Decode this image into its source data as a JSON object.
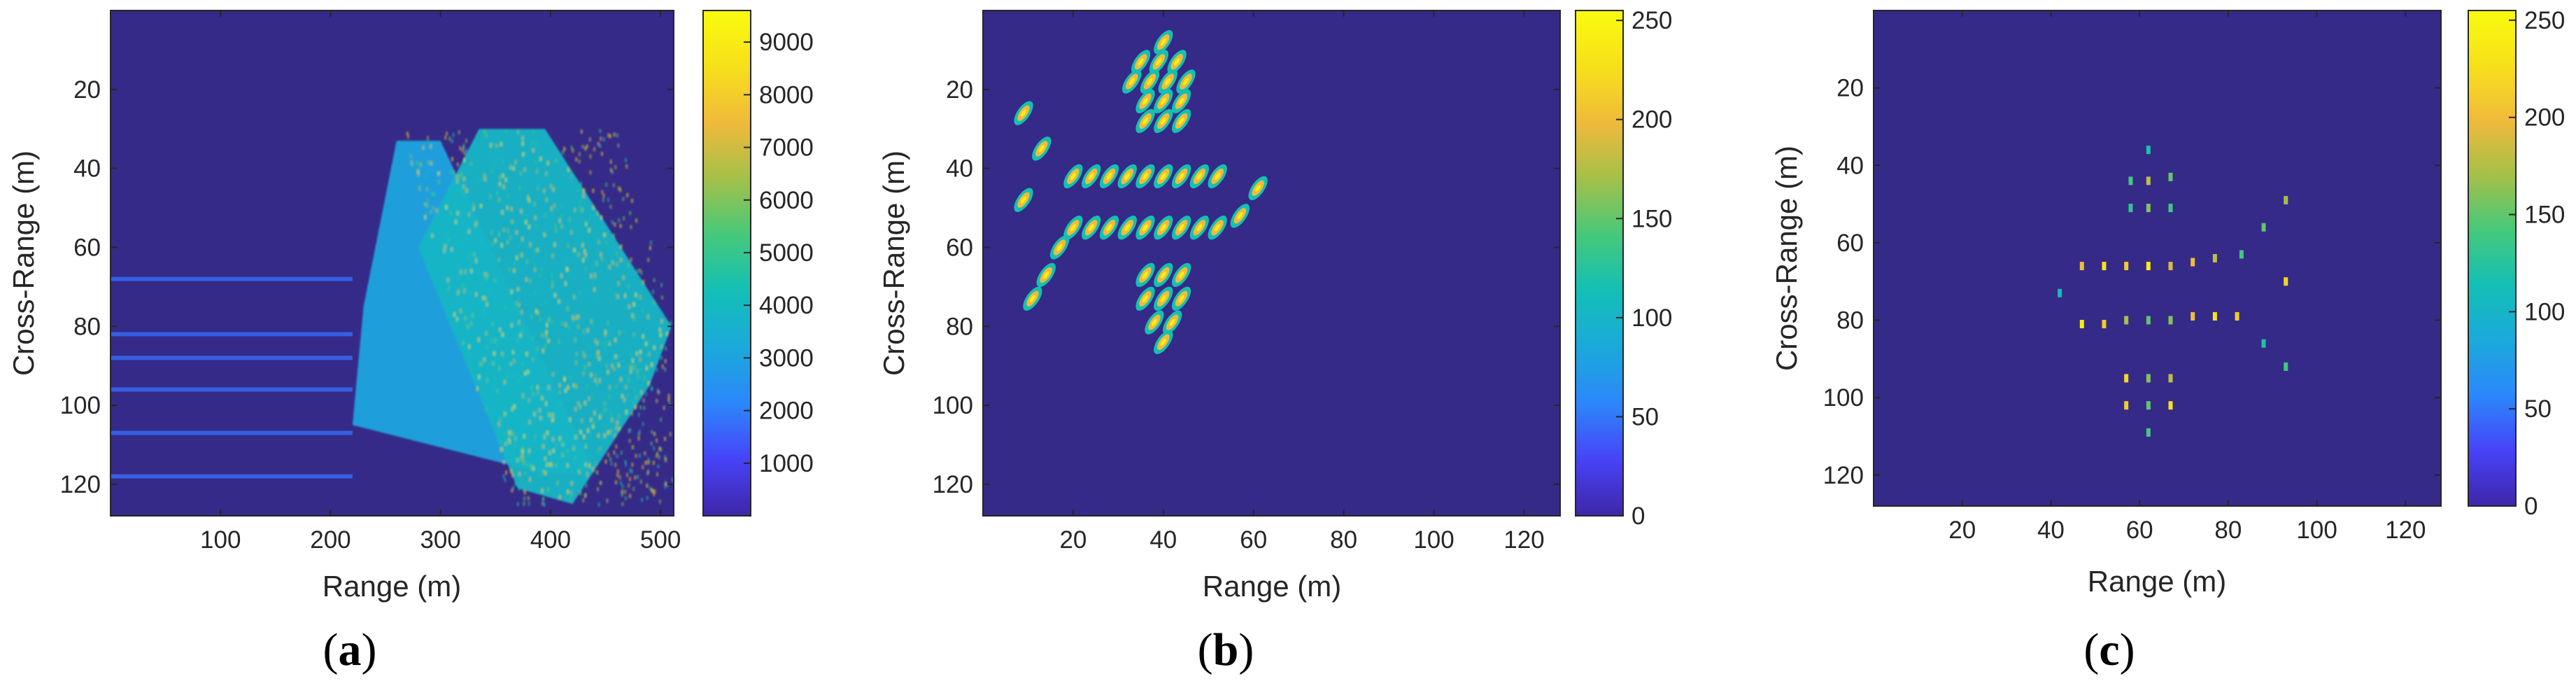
{
  "chart_data": [
    {
      "type": "heatmap",
      "panel_label": "(a)",
      "panel_letter": "a",
      "xlabel": "Range (m)",
      "ylabel": "Cross-Range (m)",
      "xlim": [
        0,
        512
      ],
      "ylim": [
        0,
        128
      ],
      "xticks": [
        100,
        200,
        300,
        400,
        500
      ],
      "yticks": [
        20,
        40,
        60,
        80,
        100,
        120
      ],
      "colorbar": {
        "min": 0,
        "max": 9600,
        "ticks": [
          1000,
          2000,
          3000,
          4000,
          5000,
          6000,
          7000,
          8000,
          9000
        ]
      },
      "colormap": [
        "#3e26a8",
        "#4743f8",
        "#2c87fb",
        "#1ba9db",
        "#13bfb6",
        "#45c97b",
        "#a4c049",
        "#f0ba3b",
        "#f7e01a",
        "#f9fb0e"
      ],
      "description_values": {
        "range_profile_smear_min_range_m": 220,
        "range_profile_smear_max_range_m": 510,
        "cross_range_extent_m": [
          30,
          125
        ],
        "horizontal_stripe_cross_ranges_m": [
          68,
          82,
          88,
          96,
          107,
          118
        ]
      }
    },
    {
      "type": "heatmap",
      "panel_label": "(b)",
      "panel_letter": "b",
      "xlabel": "Range (m)",
      "ylabel": "Cross-Range (m)",
      "xlim": [
        0,
        128
      ],
      "ylim": [
        0,
        128
      ],
      "xticks": [
        20,
        40,
        60,
        80,
        100,
        120
      ],
      "yticks": [
        20,
        40,
        60,
        80,
        100,
        120
      ],
      "colorbar": {
        "min": 0,
        "max": 255,
        "ticks": [
          0,
          50,
          100,
          150,
          200,
          250
        ]
      },
      "colormap": [
        "#3e26a8",
        "#4743f8",
        "#2c87fb",
        "#1ba9db",
        "#13bfb6",
        "#45c97b",
        "#a4c049",
        "#f0ba3b",
        "#f7e01a",
        "#f9fb0e"
      ],
      "scatterers": [
        [
          40,
          8
        ],
        [
          35,
          13
        ],
        [
          39,
          13
        ],
        [
          43,
          13
        ],
        [
          33,
          18
        ],
        [
          37,
          18
        ],
        [
          41,
          18
        ],
        [
          45,
          18
        ],
        [
          36,
          23
        ],
        [
          40,
          23
        ],
        [
          44,
          23
        ],
        [
          36,
          28
        ],
        [
          40,
          28
        ],
        [
          44,
          28
        ],
        [
          9,
          26
        ],
        [
          13,
          35
        ],
        [
          9,
          48
        ],
        [
          20,
          42
        ],
        [
          24,
          42
        ],
        [
          28,
          42
        ],
        [
          32,
          42
        ],
        [
          36,
          42
        ],
        [
          40,
          42
        ],
        [
          44,
          42
        ],
        [
          48,
          42
        ],
        [
          52,
          42
        ],
        [
          20,
          55
        ],
        [
          24,
          55
        ],
        [
          28,
          55
        ],
        [
          32,
          55
        ],
        [
          36,
          55
        ],
        [
          40,
          55
        ],
        [
          44,
          55
        ],
        [
          48,
          55
        ],
        [
          52,
          55
        ],
        [
          57,
          52
        ],
        [
          61,
          45
        ],
        [
          17,
          60
        ],
        [
          14,
          67
        ],
        [
          11,
          73
        ],
        [
          36,
          67
        ],
        [
          40,
          67
        ],
        [
          44,
          67
        ],
        [
          36,
          73
        ],
        [
          40,
          73
        ],
        [
          44,
          73
        ],
        [
          38,
          79
        ],
        [
          42,
          79
        ],
        [
          40,
          84
        ]
      ]
    },
    {
      "type": "heatmap",
      "panel_label": "(c)",
      "panel_letter": "c",
      "xlabel": "Range (m)",
      "ylabel": "Cross-Range (m)",
      "xlim": [
        0,
        128
      ],
      "ylim": [
        0,
        128
      ],
      "xticks": [
        20,
        40,
        60,
        80,
        100,
        120
      ],
      "yticks": [
        20,
        40,
        60,
        80,
        100,
        120
      ],
      "colorbar": {
        "min": 0,
        "max": 255,
        "ticks": [
          0,
          50,
          100,
          150,
          200,
          250
        ]
      },
      "colormap": [
        "#3e26a8",
        "#4743f8",
        "#2c87fb",
        "#1ba9db",
        "#13bfb6",
        "#45c97b",
        "#a4c049",
        "#f0ba3b",
        "#f7e01a",
        "#f9fb0e"
      ],
      "scatterers": [
        [
          62,
          36,
          120
        ],
        [
          58,
          44,
          140
        ],
        [
          62,
          44,
          180
        ],
        [
          67,
          43,
          150
        ],
        [
          58,
          51,
          130
        ],
        [
          62,
          51,
          160
        ],
        [
          67,
          51,
          140
        ],
        [
          93,
          49,
          170
        ],
        [
          88,
          56,
          150
        ],
        [
          83,
          63,
          140
        ],
        [
          47,
          66,
          200
        ],
        [
          52,
          66,
          230
        ],
        [
          57,
          66,
          210
        ],
        [
          62,
          66,
          240
        ],
        [
          67,
          66,
          190
        ],
        [
          72,
          65,
          200
        ],
        [
          77,
          64,
          180
        ],
        [
          42,
          73,
          110
        ],
        [
          93,
          70,
          220
        ],
        [
          47,
          81,
          240
        ],
        [
          52,
          81,
          210
        ],
        [
          57,
          80,
          170
        ],
        [
          62,
          80,
          150
        ],
        [
          67,
          80,
          160
        ],
        [
          72,
          79,
          200
        ],
        [
          77,
          79,
          230
        ],
        [
          82,
          79,
          210
        ],
        [
          88,
          86,
          120
        ],
        [
          93,
          92,
          140
        ],
        [
          57,
          95,
          220
        ],
        [
          62,
          95,
          160
        ],
        [
          67,
          95,
          180
        ],
        [
          57,
          102,
          210
        ],
        [
          62,
          102,
          150
        ],
        [
          67,
          102,
          230
        ],
        [
          62,
          109,
          140
        ]
      ]
    }
  ]
}
